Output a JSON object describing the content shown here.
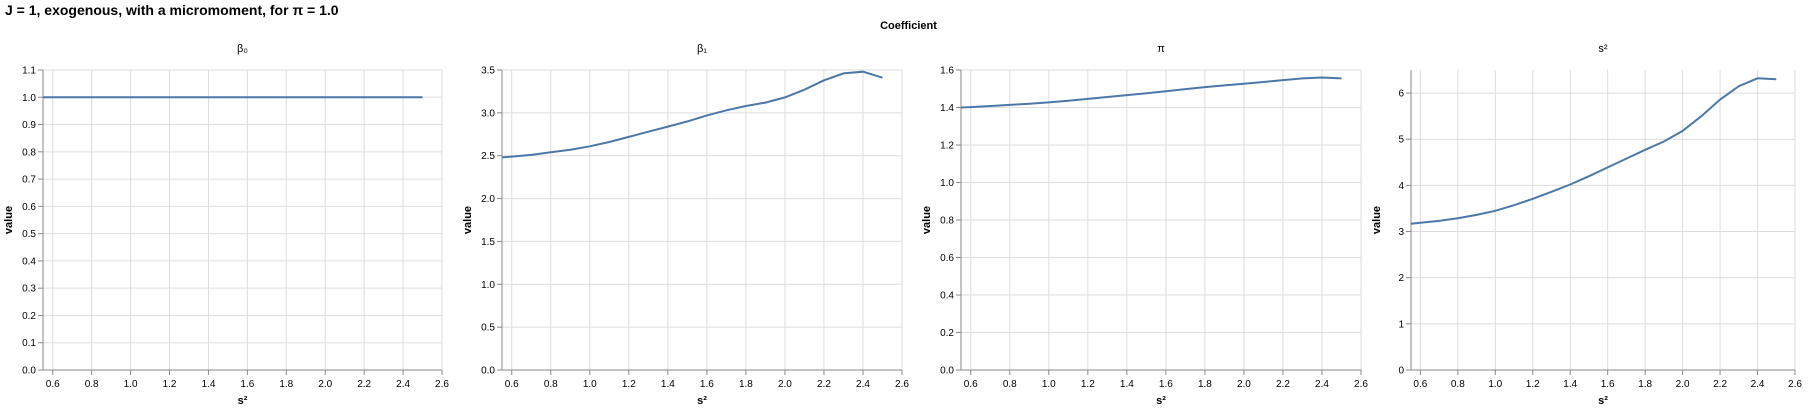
{
  "title": "J = 1, exogenous, with a micromoment,  for π = 1.0",
  "facet_header": "Coefficient",
  "colors": {
    "line": "#4c78a8",
    "grid": "#dddddd",
    "axis": "#888888"
  },
  "chart_data": [
    {
      "type": "line",
      "title": "β₀",
      "xlabel": "s²",
      "ylabel": "value",
      "xlim": [
        0.55,
        2.6
      ],
      "ylim": [
        0,
        1.1
      ],
      "xticks": [
        "0.6",
        "0.8",
        "1.0",
        "1.2",
        "1.4",
        "1.6",
        "1.8",
        "2.0",
        "2.2",
        "2.4",
        "2.6"
      ],
      "yticks": [
        "0.0",
        "0.1",
        "0.2",
        "0.3",
        "0.4",
        "0.5",
        "0.6",
        "0.7",
        "0.8",
        "0.9",
        "1.0",
        "1.1"
      ],
      "grid": true,
      "x": [
        0.55,
        0.6,
        0.7,
        0.8,
        0.9,
        1.0,
        1.1,
        1.2,
        1.3,
        1.4,
        1.5,
        1.6,
        1.7,
        1.8,
        1.9,
        2.0,
        2.1,
        2.2,
        2.3,
        2.4,
        2.5
      ],
      "y": [
        1.0,
        1.0,
        1.0,
        1.0,
        1.0,
        1.0,
        1.0,
        1.0,
        1.0,
        1.0,
        1.0,
        1.0,
        1.0,
        1.0,
        1.0,
        1.0,
        1.0,
        1.0,
        1.0,
        1.0,
        1.0
      ]
    },
    {
      "type": "line",
      "title": "β₁",
      "xlabel": "s²",
      "ylabel": "value",
      "xlim": [
        0.55,
        2.6
      ],
      "ylim": [
        0,
        3.5
      ],
      "xticks": [
        "0.6",
        "0.8",
        "1.0",
        "1.2",
        "1.4",
        "1.6",
        "1.8",
        "2.0",
        "2.2",
        "2.4",
        "2.6"
      ],
      "yticks": [
        "0.0",
        "0.5",
        "1.0",
        "1.5",
        "2.0",
        "2.5",
        "3.0",
        "3.5"
      ],
      "grid": true,
      "x": [
        0.55,
        0.6,
        0.7,
        0.8,
        0.9,
        1.0,
        1.1,
        1.2,
        1.3,
        1.4,
        1.5,
        1.6,
        1.7,
        1.8,
        1.9,
        2.0,
        2.1,
        2.2,
        2.3,
        2.4,
        2.5
      ],
      "y": [
        2.48,
        2.49,
        2.51,
        2.54,
        2.57,
        2.61,
        2.66,
        2.72,
        2.78,
        2.84,
        2.9,
        2.97,
        3.03,
        3.08,
        3.12,
        3.18,
        3.27,
        3.38,
        3.46,
        3.48,
        3.41
      ]
    },
    {
      "type": "line",
      "title": "π",
      "xlabel": "s²",
      "ylabel": "value",
      "xlim": [
        0.55,
        2.6
      ],
      "ylim": [
        0,
        1.6
      ],
      "xticks": [
        "0.6",
        "0.8",
        "1.0",
        "1.2",
        "1.4",
        "1.6",
        "1.8",
        "2.0",
        "2.2",
        "2.4",
        "2.6"
      ],
      "yticks": [
        "0.0",
        "0.2",
        "0.4",
        "0.6",
        "0.8",
        "1.0",
        "1.2",
        "1.4",
        "1.6"
      ],
      "grid": true,
      "x": [
        0.55,
        0.6,
        0.7,
        0.8,
        0.9,
        1.0,
        1.1,
        1.2,
        1.3,
        1.4,
        1.5,
        1.6,
        1.7,
        1.8,
        1.9,
        2.0,
        2.1,
        2.2,
        2.3,
        2.4,
        2.5
      ],
      "y": [
        1.4,
        1.402,
        1.408,
        1.414,
        1.42,
        1.427,
        1.436,
        1.446,
        1.456,
        1.466,
        1.476,
        1.487,
        1.498,
        1.509,
        1.518,
        1.527,
        1.536,
        1.546,
        1.555,
        1.56,
        1.555
      ]
    },
    {
      "type": "line",
      "title": "s²",
      "xlabel": "s²",
      "ylabel": "value",
      "xlim": [
        0.55,
        2.6
      ],
      "ylim": [
        0,
        6.5
      ],
      "xticks": [
        "0.6",
        "0.8",
        "1.0",
        "1.2",
        "1.4",
        "1.6",
        "1.8",
        "2.0",
        "2.2",
        "2.4",
        "2.6"
      ],
      "yticks": [
        "0",
        "1",
        "2",
        "3",
        "4",
        "5",
        "6"
      ],
      "grid": true,
      "x": [
        0.55,
        0.6,
        0.7,
        0.8,
        0.9,
        1.0,
        1.1,
        1.2,
        1.3,
        1.4,
        1.5,
        1.6,
        1.7,
        1.8,
        1.9,
        2.0,
        2.1,
        2.2,
        2.3,
        2.4,
        2.5
      ],
      "y": [
        3.17,
        3.19,
        3.23,
        3.29,
        3.36,
        3.45,
        3.57,
        3.71,
        3.86,
        4.02,
        4.2,
        4.39,
        4.58,
        4.77,
        4.95,
        5.18,
        5.5,
        5.86,
        6.15,
        6.32,
        6.3
      ]
    }
  ]
}
